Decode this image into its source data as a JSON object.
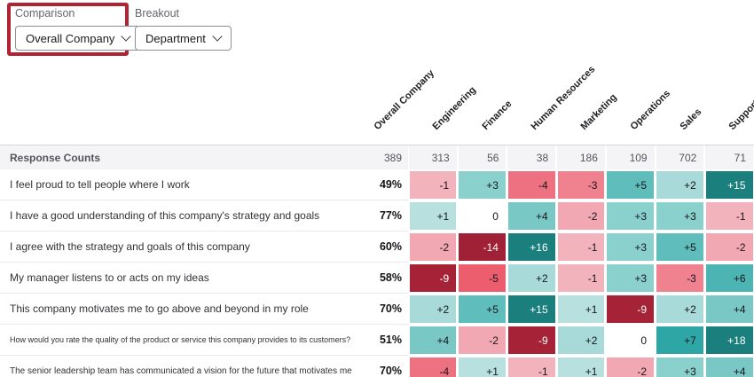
{
  "controls": {
    "comparison": {
      "label": "Comparison",
      "value": "Overall Company"
    },
    "breakout": {
      "label": "Breakout",
      "value": "Department"
    }
  },
  "highlight_color": "#b12233",
  "chart_data": {
    "type": "heatmap",
    "corner_label": "Response Counts",
    "columns": [
      "Overall Company",
      "Engineering",
      "Finance",
      "Human Resources",
      "Marketing",
      "Operations",
      "Sales",
      "Support"
    ],
    "response_counts": [
      "389",
      "313",
      "56",
      "38",
      "186",
      "109",
      "702",
      "71"
    ],
    "rows": [
      {
        "label": "I feel proud to tell people where I work",
        "pct": "49%",
        "deltas": [
          "-1",
          "+3",
          "-4",
          "-3",
          "+5",
          "+2",
          "+15"
        ]
      },
      {
        "label": "I have a good understanding of this company's strategy and goals",
        "pct": "77%",
        "deltas": [
          "+1",
          "0",
          "+4",
          "-2",
          "+3",
          "+3",
          "-1"
        ]
      },
      {
        "label": "I agree with the strategy and goals of this company",
        "pct": "60%",
        "deltas": [
          "-2",
          "-14",
          "+16",
          "-1",
          "+3",
          "+5",
          "-2"
        ]
      },
      {
        "label": "My manager listens to or acts on my ideas",
        "pct": "58%",
        "deltas": [
          "-9",
          "-5",
          "+2",
          "-1",
          "+3",
          "-3",
          "+6"
        ]
      },
      {
        "label": "This company motivates me to go above and beyond in my role",
        "pct": "70%",
        "deltas": [
          "+2",
          "+5",
          "+15",
          "+1",
          "-9",
          "+2",
          "+4"
        ]
      },
      {
        "label": "How would you rate the quality of the product or service this company provides to its customers?",
        "pct": "51%",
        "deltas": [
          "+4",
          "-2",
          "-9",
          "+2",
          "0",
          "+7",
          "+18"
        ]
      },
      {
        "label": "The senior leadership team has communicated a vision for the future that motivates me",
        "pct": "70%",
        "deltas": [
          "-4",
          "+1",
          "-1",
          "+1",
          "-2",
          "+3",
          "+4"
        ]
      }
    ],
    "color_scale": {
      "zero": "#ffffff",
      "positive": {
        "1": "#b7e0de",
        "2": "#a7dad8",
        "3": "#8ad0cd",
        "4": "#79c8c6",
        "5": "#5fbdbb",
        "6": "#4cb5b4",
        "7": "#2ea6a5",
        "15": "#1a7f7d",
        "16": "#1a7f7d",
        "18": "#1a7f7d"
      },
      "negative": {
        "1": "#f3b3bc",
        "2": "#f2a8b2",
        "3": "#f0818f",
        "4": "#ee7181",
        "5": "#ec5d6e",
        "9": "#a62337",
        "14": "#a02036"
      },
      "white_text_threshold": 9
    }
  }
}
